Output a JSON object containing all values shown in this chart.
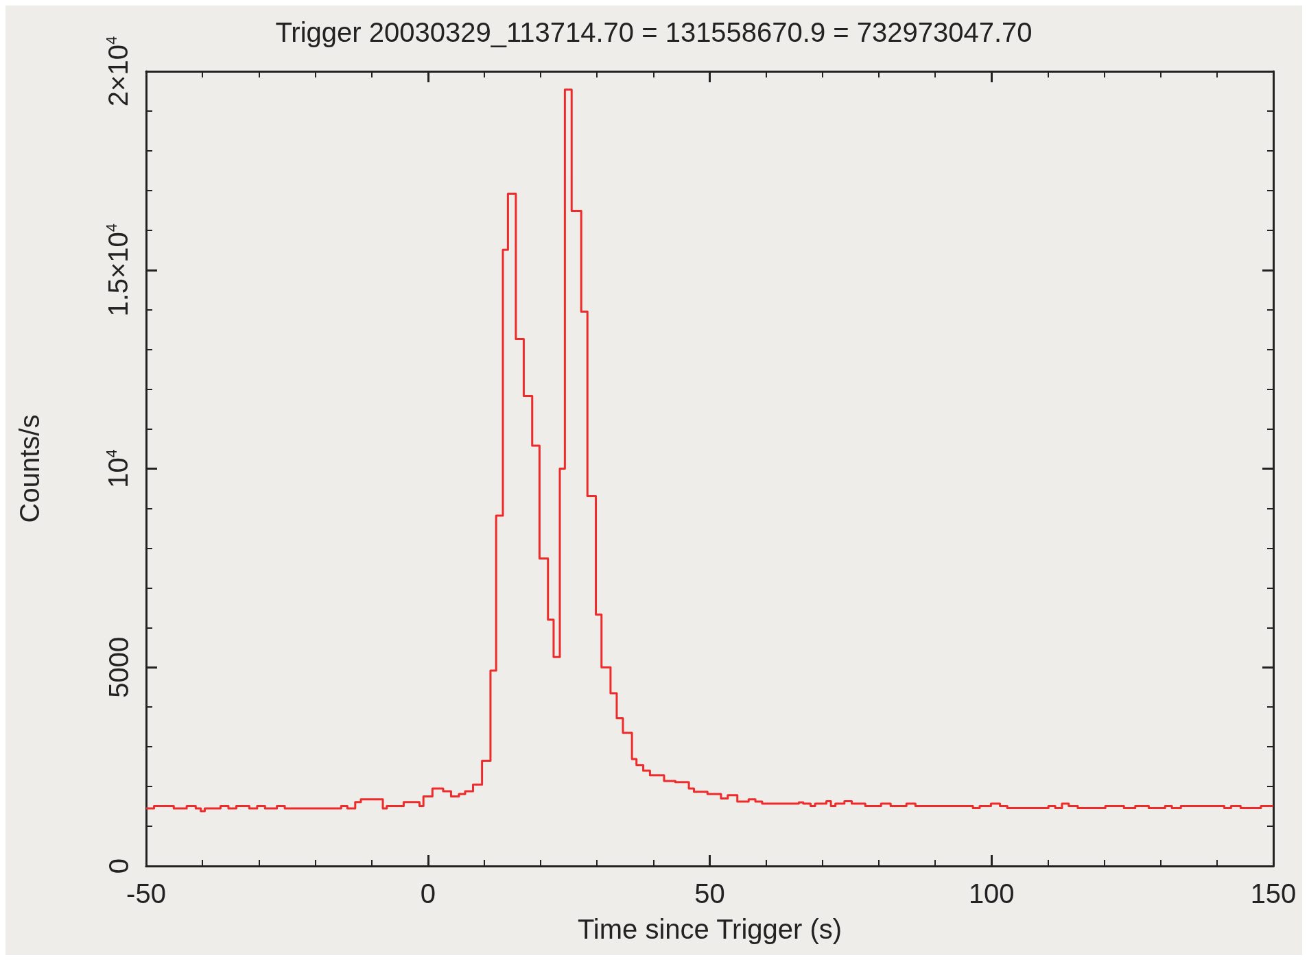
{
  "chart_data": {
    "type": "step",
    "title": "Trigger 20030329_113714.70 = 131558670.9 = 732973047.70",
    "xlabel": "Time since Trigger (s)",
    "ylabel": "Counts/s",
    "x": [
      -50,
      -48.6,
      -45.1,
      -42.8,
      -41.2,
      -40.3,
      -39.6,
      -36.8,
      -35.4,
      -34,
      -31.7,
      -30.3,
      -28.9,
      -26.8,
      -25.4,
      -15.4,
      -14.3,
      -12.9,
      -11.9,
      -8,
      -7.3,
      -4.3,
      -1.5,
      -0.8,
      0.8,
      2.7,
      4.1,
      5.5,
      6.6,
      8,
      9.6,
      11.1,
      12.1,
      13.3,
      14.2,
      15.6,
      17,
      18.5,
      19.8,
      21.3,
      22.3,
      23.4,
      24.3,
      25.5,
      27.2,
      28.3,
      29.8,
      30.8,
      32.4,
      33.5,
      34.6,
      36.2,
      37,
      38.2,
      39.4,
      41.9,
      43.9,
      46.3,
      47.2,
      49.6,
      52,
      53.2,
      54.9,
      56.9,
      58.1,
      59.3,
      65.8,
      66.6,
      67.9,
      68.7,
      70.7,
      71.5,
      72.3,
      73.9,
      75.2,
      77.6,
      80.4,
      82.1,
      84.9,
      86.5,
      96.7,
      97.9,
      99.9,
      101.5,
      102.8,
      110.1,
      111.3,
      112.5,
      113.7,
      115.3,
      120.2,
      123.5,
      125.5,
      127.9,
      130.8,
      132,
      133.6,
      141.3,
      142.5,
      144.2,
      147.8,
      150
    ],
    "series": [
      {
        "color": "#ee2b2b",
        "values": [
          1450,
          1510,
          1450,
          1510,
          1450,
          1380,
          1450,
          1510,
          1450,
          1510,
          1450,
          1510,
          1450,
          1510,
          1450,
          1510,
          1450,
          1610,
          1680,
          1450,
          1510,
          1610,
          1510,
          1750,
          1950,
          1880,
          1750,
          1810,
          1880,
          2050,
          2650,
          4920,
          8820,
          15510,
          16920,
          13260,
          11830,
          10580,
          7740,
          6200,
          5260,
          10000,
          19540,
          16490,
          13950,
          9310,
          6330,
          5000,
          4350,
          3720,
          3350,
          2690,
          2540,
          2400,
          2280,
          2140,
          2110,
          1950,
          1870,
          1810,
          1700,
          1780,
          1620,
          1680,
          1620,
          1570,
          1600,
          1570,
          1510,
          1570,
          1630,
          1510,
          1570,
          1630,
          1570,
          1510,
          1570,
          1510,
          1570,
          1510,
          1460,
          1510,
          1570,
          1510,
          1460,
          1510,
          1460,
          1570,
          1510,
          1460,
          1510,
          1460,
          1510,
          1460,
          1510,
          1460,
          1510,
          1460,
          1510,
          1460,
          1510,
          1510
        ]
      }
    ],
    "xlim": [
      -50,
      150
    ],
    "xticks": [
      -50,
      0,
      50,
      100,
      150
    ],
    "ylim": [
      0,
      20000
    ],
    "yticks": [
      0,
      5000,
      {
        "value": 10000,
        "label": "10$^{4}$"
      },
      {
        "value": 15000,
        "label": "1.5×10$^{4}$"
      },
      {
        "value": 20000,
        "label": "2×10$^{4}$"
      }
    ],
    "grid": false,
    "marker": "none",
    "line_style": "solid"
  }
}
